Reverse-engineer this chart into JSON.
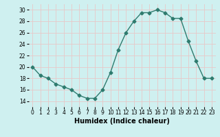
{
  "x": [
    0,
    1,
    2,
    3,
    4,
    5,
    6,
    7,
    8,
    9,
    10,
    11,
    12,
    13,
    14,
    15,
    16,
    17,
    18,
    19,
    20,
    21,
    22,
    23
  ],
  "y": [
    20,
    18.5,
    18,
    17,
    16.5,
    16,
    15,
    14.5,
    14.5,
    16,
    19,
    23,
    26,
    28,
    29.5,
    29.5,
    30,
    29.5,
    28.5,
    28.5,
    24.5,
    21,
    18,
    18
  ],
  "line_color": "#2e7b6e",
  "marker": "D",
  "markersize": 2.5,
  "linewidth": 1.0,
  "xlabel": "Humidex (Indice chaleur)",
  "xlabel_fontsize": 7,
  "xlabel_bold": true,
  "ylim": [
    13,
    31
  ],
  "xlim": [
    -0.5,
    23.5
  ],
  "yticks": [
    14,
    16,
    18,
    20,
    22,
    24,
    26,
    28,
    30
  ],
  "xticks": [
    0,
    1,
    2,
    3,
    4,
    5,
    6,
    7,
    8,
    9,
    10,
    11,
    12,
    13,
    14,
    15,
    16,
    17,
    18,
    19,
    20,
    21,
    22,
    23
  ],
  "background_color": "#cff0f0",
  "grid_color": "#e8c8c8",
  "tick_fontsize": 5.5,
  "dpi": 100
}
